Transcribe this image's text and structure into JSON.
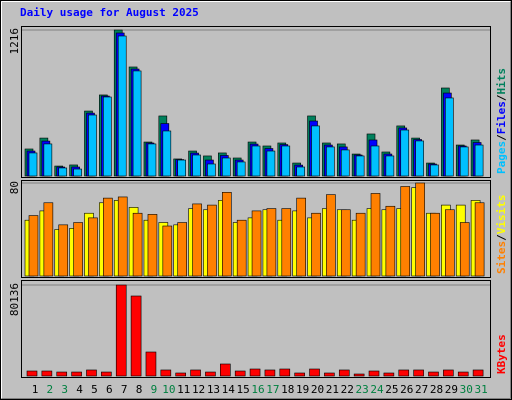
{
  "chart_data": [
    {
      "type": "bar",
      "title": "Daily usage for August 2025",
      "ylim": [
        0,
        1216
      ],
      "yticks": [
        1216
      ],
      "legend_separator": "/",
      "series": [
        {
          "name": "Hits",
          "color": "#00805c",
          "values": [
            225,
            316,
            83,
            92,
            541,
            675,
            1216,
            908,
            283,
            500,
            142,
            208,
            167,
            192,
            150,
            283,
            250,
            275,
            108,
            500,
            275,
            267,
            183,
            350,
            200,
            417,
            316,
            108,
            733,
            258,
            300
          ]
        },
        {
          "name": "Files",
          "color": "#0000ff",
          "values": [
            208,
            291,
            75,
            75,
            524,
            666,
            1191,
            891,
            275,
            437,
            137,
            191,
            133,
            171,
            133,
            266,
            229,
            262,
            91,
            458,
            258,
            242,
            175,
            300,
            183,
            400,
            304,
            100,
            691,
            250,
            279
          ]
        },
        {
          "name": "Pages",
          "color": "#00c0ff",
          "values": [
            192,
            267,
            67,
            58,
            508,
            658,
            1166,
            875,
            267,
            375,
            133,
            175,
            100,
            150,
            117,
            250,
            208,
            250,
            75,
            417,
            242,
            217,
            167,
            250,
            167,
            383,
            292,
            92,
            650,
            242,
            258
          ]
        }
      ]
    },
    {
      "type": "bar",
      "ylim": [
        0,
        80
      ],
      "yticks": [
        80
      ],
      "legend_separator": "/",
      "series": [
        {
          "name": "Visits",
          "color": "#ffff00",
          "values": [
            48,
            56,
            40,
            41,
            54,
            63,
            65,
            59,
            48,
            46,
            44,
            58,
            57,
            65,
            46,
            50,
            57,
            48,
            56,
            50,
            58,
            57,
            48,
            58,
            57,
            58,
            76,
            54,
            61,
            61,
            65
          ]
        },
        {
          "name": "Sites",
          "color": "#ff8000",
          "values": [
            52,
            63,
            44,
            46,
            50,
            67,
            68,
            54,
            53,
            43,
            46,
            62,
            61,
            72,
            48,
            56,
            58,
            58,
            67,
            54,
            70,
            57,
            54,
            71,
            60,
            77,
            80,
            54,
            57,
            46,
            63
          ]
        }
      ]
    },
    {
      "type": "bar",
      "ylim": [
        0,
        80136
      ],
      "yticks": [
        80136
      ],
      "categories": [
        "1",
        "2",
        "3",
        "4",
        "5",
        "6",
        "7",
        "8",
        "9",
        "10",
        "11",
        "12",
        "13",
        "14",
        "15",
        "16",
        "17",
        "18",
        "19",
        "20",
        "21",
        "22",
        "23",
        "24",
        "25",
        "26",
        "27",
        "28",
        "29",
        "30",
        "31"
      ],
      "category_colors": [
        "#000000",
        "#008040",
        "#008040",
        "#000000",
        "#000000",
        "#000000",
        "#000000",
        "#000000",
        "#008040",
        "#008040",
        "#000000",
        "#000000",
        "#000000",
        "#000000",
        "#000000",
        "#008040",
        "#008040",
        "#000000",
        "#000000",
        "#000000",
        "#000000",
        "#000000",
        "#008040",
        "#008040",
        "#000000",
        "#000000",
        "#000000",
        "#000000",
        "#000000",
        "#008040",
        "#008040"
      ],
      "series": [
        {
          "name": "KBytes",
          "color": "#ff0000",
          "values": [
            4400,
            4400,
            3500,
            3500,
            5300,
            3500,
            80136,
            70450,
            21130,
            5300,
            2640,
            5300,
            3500,
            10570,
            4400,
            6160,
            5300,
            6160,
            2640,
            6160,
            2640,
            5300,
            1760,
            4400,
            2640,
            5300,
            5300,
            3500,
            5300,
            3500,
            5300
          ]
        }
      ]
    }
  ]
}
